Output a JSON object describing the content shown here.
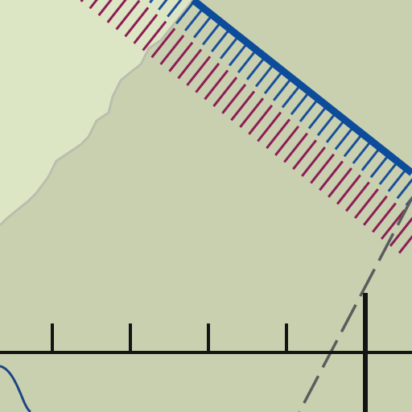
{
  "map": {
    "colors": {
      "background": "#c8d0b0",
      "highlight_area": "#dde6c4",
      "highlight_edge": "#b9bfac",
      "border_line": "#0d4c9a",
      "boundary_hatch_red": "#8c1e55",
      "boundary_hatch_blue": "#1a4f99",
      "scale_bar": "#141414",
      "dashed_route": "#5c5c5c",
      "river": "#1d4585"
    },
    "symbols": {
      "hatched_boundary": "double-hatched-boundary",
      "scale_bar": "scale-bar-ruler",
      "dashed_route": "dashed-route-line",
      "river": "river-curve",
      "highlight_area": "light-shaded-region"
    }
  }
}
